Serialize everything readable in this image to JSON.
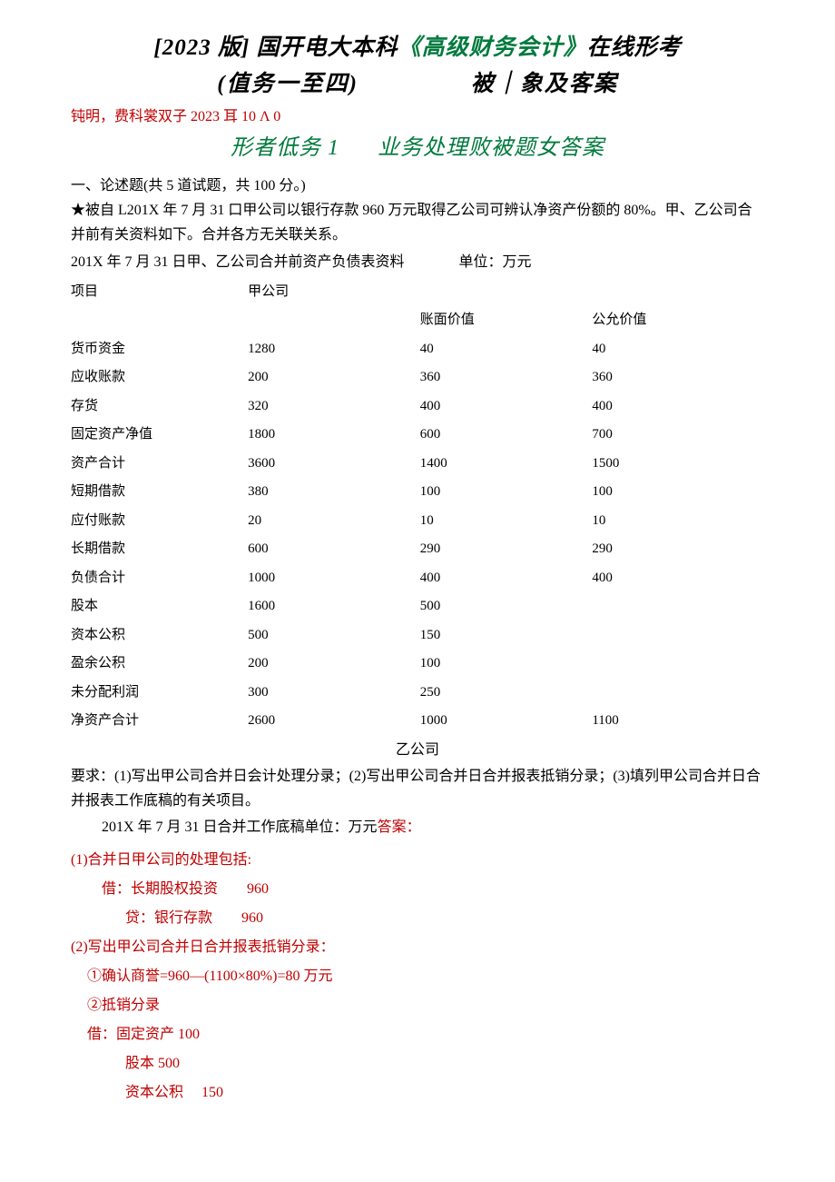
{
  "colors": {
    "black": "#000000",
    "green": "#007a3d",
    "red": "#c00000",
    "background": "#ffffff"
  },
  "title": {
    "line1_part1": "[2023 版] 国开电大本科",
    "line1_part2": "《高级财务会计》",
    "line1_part3": "在线形考",
    "line2": "(值务一至四)               被｜象及客案"
  },
  "note": "钝明，费科裳双子 2023 耳 10 Λ 0",
  "subtitle": "形者低务 1      业务处理败被题女答案",
  "section_heading": "一、论述题(共 5 道试题，共 100 分。)",
  "problem_p1": "★被自 L201X 年 7 月 31 口甲公司以银行存款 960 万元取得乙公司可辨认净资产份额的 80%。甲、乙公司合并前有关资料如下。合并各方无关联关系。",
  "table_caption": "201X 年 7 月 31 日甲、乙公司合并前资产负债表资料               单位：万元",
  "table": {
    "header_row1": [
      "项目",
      "甲公司",
      "",
      ""
    ],
    "header_row2": [
      "",
      "",
      "账面价值",
      "公允价值"
    ],
    "rows": [
      [
        "货币资金",
        "1280",
        "40",
        "40"
      ],
      [
        "应收账款",
        "200",
        "360",
        "360"
      ],
      [
        "存货",
        "320",
        "400",
        "400"
      ],
      [
        "固定资产净值",
        "1800",
        "600",
        "700"
      ],
      [
        "资产合计",
        "3600",
        "1400",
        "1500"
      ],
      [
        "短期借款",
        "380",
        "100",
        "100"
      ],
      [
        "应付账款",
        "20",
        "10",
        "10"
      ],
      [
        "长期借款",
        "600",
        "290",
        "290"
      ],
      [
        "负债合计",
        "1000",
        "400",
        "400"
      ],
      [
        "股本",
        "1600",
        "500",
        ""
      ],
      [
        "资本公积",
        "500",
        "150",
        ""
      ],
      [
        "盈余公积",
        "200",
        "100",
        ""
      ],
      [
        "未分配利润",
        "300",
        "250",
        ""
      ],
      [
        "净资产合计",
        "2600",
        "1000",
        "1100"
      ]
    ]
  },
  "yigongsi": "乙公司",
  "requirements": "要求：(1)写出甲公司合并日会计处理分录；(2)写出甲公司合并日合并报表抵销分录；(3)填列甲公司合并日合并报表工作底稿的有关项目。",
  "pre_answer_line_a": "201X 年 7 月 31 日合并工作底稿单位：万元",
  "pre_answer_line_b": "答案：",
  "answers": {
    "l1": "(1)合并日甲公司的处理包括:",
    "l2a": "借：长期股权投资",
    "l2b": "960",
    "l3a": "贷：银行存款",
    "l3b": "960",
    "l4": "(2)写出甲公司合并日合并报表抵销分录：",
    "l5": "①确认商誉=960―(1100×80%)=80 万元",
    "l6": "②抵销分录",
    "l7": "借：固定资产 100",
    "l8": "股本 500",
    "l9a": "资本公积",
    "l9b": "150"
  }
}
